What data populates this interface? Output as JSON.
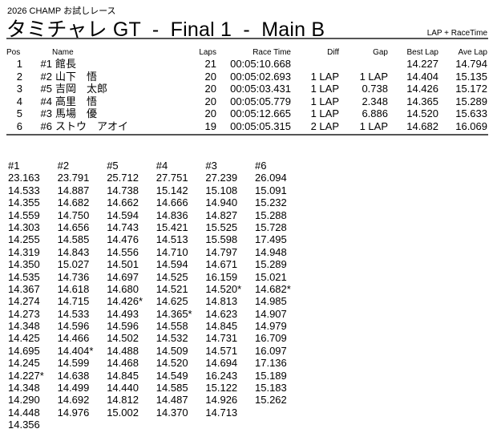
{
  "header": {
    "series": "2026 CHAMP お試しレース",
    "title": "タミチャレ GT  -  Final 1  -  Main B",
    "mode": "LAP + RaceTime"
  },
  "results": {
    "columns": [
      "Pos",
      "",
      "Name",
      "Laps",
      "Race Time",
      "Diff",
      "Gap",
      "Best Lap",
      "Ave Lap"
    ],
    "rows": [
      [
        "1",
        "#1",
        "館長",
        "21",
        "00:05:10.668",
        "",
        "",
        "14.227",
        "14.794"
      ],
      [
        "2",
        "#2",
        "山下　悟",
        "20",
        "00:05:02.693",
        "1 LAP",
        "1 LAP",
        "14.404",
        "15.135"
      ],
      [
        "3",
        "#5",
        "吉岡　太郎",
        "20",
        "00:05:03.431",
        "1 LAP",
        "0.738",
        "14.426",
        "15.172"
      ],
      [
        "4",
        "#4",
        "高里　悟",
        "20",
        "00:05:05.779",
        "1 LAP",
        "2.348",
        "14.365",
        "15.289"
      ],
      [
        "5",
        "#3",
        "馬場　優",
        "20",
        "00:05:12.665",
        "1 LAP",
        "6.886",
        "14.520",
        "15.633"
      ],
      [
        "6",
        "#6",
        "ストウ　アオイ",
        "19",
        "00:05:05.315",
        "2 LAP",
        "1 LAP",
        "14.682",
        "16.069"
      ]
    ]
  },
  "laps": [
    {
      "car": "#1",
      "times": [
        "23.163",
        "14.533",
        "14.355",
        "14.559",
        "14.303",
        "14.255",
        "14.319",
        "14.350",
        "14.535",
        "14.367",
        "14.274",
        "14.273",
        "14.348",
        "14.425",
        "14.695",
        "14.245",
        "14.227*",
        "14.348",
        "14.290",
        "14.448",
        "14.356"
      ]
    },
    {
      "car": "#2",
      "times": [
        "23.791",
        "14.887",
        "14.682",
        "14.750",
        "14.656",
        "14.585",
        "14.843",
        "15.027",
        "14.736",
        "14.618",
        "14.715",
        "14.533",
        "14.596",
        "14.466",
        "14.404*",
        "14.599",
        "14.638",
        "14.499",
        "14.692",
        "14.976"
      ]
    },
    {
      "car": "#5",
      "times": [
        "25.712",
        "14.738",
        "14.662",
        "14.594",
        "14.743",
        "14.476",
        "14.556",
        "14.501",
        "14.697",
        "14.680",
        "14.426*",
        "14.493",
        "14.596",
        "14.502",
        "14.488",
        "14.468",
        "14.845",
        "14.440",
        "14.812",
        "15.002"
      ]
    },
    {
      "car": "#4",
      "times": [
        "27.751",
        "15.142",
        "14.666",
        "14.836",
        "15.421",
        "14.513",
        "14.710",
        "14.594",
        "14.525",
        "14.521",
        "14.625",
        "14.365*",
        "14.558",
        "14.532",
        "14.509",
        "14.520",
        "14.549",
        "14.585",
        "14.487",
        "14.370"
      ]
    },
    {
      "car": "#3",
      "times": [
        "27.239",
        "15.108",
        "14.940",
        "14.827",
        "15.525",
        "15.598",
        "14.797",
        "14.671",
        "16.159",
        "14.520*",
        "14.813",
        "14.623",
        "14.845",
        "14.731",
        "14.571",
        "14.694",
        "16.243",
        "15.122",
        "14.926",
        "14.713"
      ]
    },
    {
      "car": "#6",
      "times": [
        "26.094",
        "15.091",
        "15.232",
        "15.288",
        "15.728",
        "17.495",
        "14.948",
        "15.289",
        "15.021",
        "14.682*",
        "14.985",
        "14.907",
        "14.979",
        "16.709",
        "16.097",
        "17.136",
        "15.189",
        "15.183",
        "15.262"
      ]
    }
  ]
}
